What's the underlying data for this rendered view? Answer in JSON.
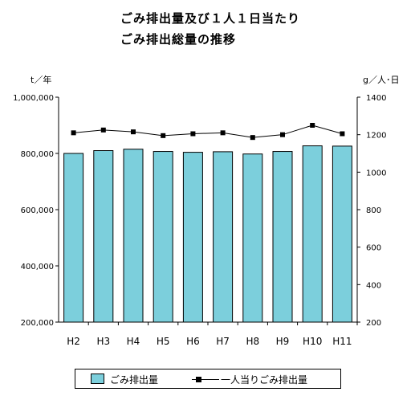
{
  "title": {
    "line1": "ごみ排出量及び１人１日当たり",
    "line2": "ごみ排出総量の推移"
  },
  "units": {
    "left": "t／年",
    "right": "g／人･日"
  },
  "legend": {
    "bar_label": "ごみ排出量",
    "line_label": "一人当りごみ排出量"
  },
  "colors": {
    "bar": "#7ccfdc",
    "line": "#000000"
  },
  "chart_data": {
    "type": "bar",
    "categories": [
      "H2",
      "H3",
      "H4",
      "H5",
      "H6",
      "H7",
      "H8",
      "H9",
      "H10",
      "H11"
    ],
    "series": [
      {
        "name": "ごみ排出量",
        "type": "bar",
        "axis": "left",
        "values": [
          800000,
          810000,
          815000,
          807000,
          804000,
          806000,
          798000,
          807000,
          827000,
          826000
        ]
      },
      {
        "name": "一人当りごみ排出量",
        "type": "line",
        "axis": "right",
        "values": [
          1210,
          1225,
          1215,
          1195,
          1205,
          1210,
          1185,
          1200,
          1250,
          1205
        ]
      }
    ],
    "y_left": {
      "range": [
        200000,
        1000000
      ],
      "ticks": [
        200000,
        400000,
        600000,
        800000,
        1000000
      ],
      "tick_labels": [
        "200,000",
        "400,000",
        "600,000",
        "800,000",
        "1,000,000"
      ]
    },
    "y_right": {
      "range": [
        200,
        1400
      ],
      "ticks": [
        200,
        400,
        600,
        800,
        1000,
        1200,
        1400
      ],
      "tick_labels": [
        "200",
        "400",
        "600",
        "800",
        "1000",
        "1200",
        "1400"
      ]
    },
    "legend_position": "bottom",
    "grid": false
  }
}
